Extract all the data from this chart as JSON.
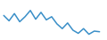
{
  "x": [
    0,
    1,
    2,
    3,
    4,
    5,
    6,
    7,
    8,
    9,
    10,
    11,
    12,
    13,
    14,
    15,
    16,
    17,
    18
  ],
  "y": [
    10.2,
    8.5,
    10.8,
    8.2,
    9.8,
    11.8,
    9.0,
    11.2,
    8.8,
    9.8,
    7.5,
    6.0,
    7.8,
    5.5,
    4.5,
    6.0,
    4.2,
    5.2,
    5.0
  ],
  "line_color": "#3a8fc8",
  "linewidth": 1.1,
  "background_color": "#ffffff",
  "ylim": [
    3.0,
    14.5
  ],
  "xlim": [
    -0.3,
    19.0
  ]
}
